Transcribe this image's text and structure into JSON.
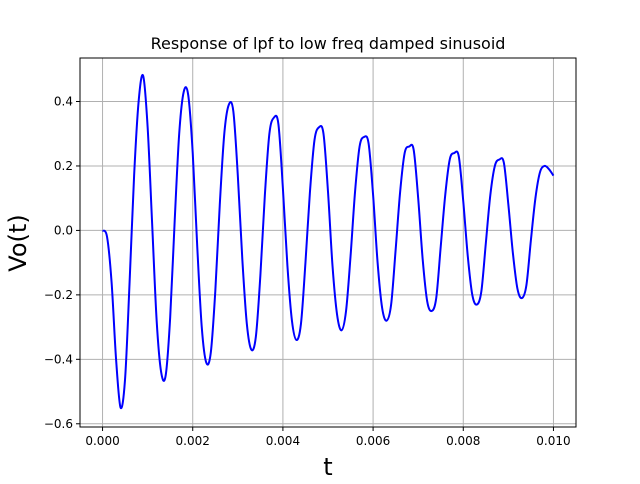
{
  "chart_data": {
    "type": "line",
    "title": "Response of lpf to low freq damped sinusoid",
    "xlabel": "t",
    "ylabel": "Vo(t)",
    "xlim": [
      -0.0005,
      0.0105
    ],
    "ylim": [
      -0.61,
      0.535
    ],
    "xticks": [
      0.0,
      0.002,
      0.004,
      0.006,
      0.008,
      0.01
    ],
    "xtick_labels": [
      "0.000",
      "0.002",
      "0.004",
      "0.006",
      "0.008",
      "0.010"
    ],
    "yticks": [
      -0.6,
      -0.4,
      -0.2,
      0.0,
      0.2,
      0.4
    ],
    "ytick_labels": [
      "−0.6",
      "−0.4",
      "−0.2",
      "0.0",
      "0.2",
      "0.4"
    ],
    "grid": true,
    "line_color": "#0000ff",
    "grid_color": "#b0b0b0",
    "series": [
      {
        "x": [
          0.0,
          0.0001,
          0.0002,
          0.0003,
          0.0004,
          0.0005,
          0.0006,
          0.0007,
          0.0008,
          0.0009,
          0.001,
          0.0011,
          0.0012,
          0.0013,
          0.0014,
          0.0015,
          0.0016,
          0.0017,
          0.0018,
          0.0019,
          0.002,
          0.0021,
          0.0022,
          0.0023,
          0.0024,
          0.0025,
          0.0026,
          0.0027,
          0.0028,
          0.0029,
          0.003,
          0.0031,
          0.0032,
          0.0033,
          0.0034,
          0.0035,
          0.0036,
          0.0037,
          0.0038,
          0.0039,
          0.004,
          0.0041,
          0.0042,
          0.0043,
          0.0044,
          0.0045,
          0.0046,
          0.0047,
          0.0048,
          0.0049,
          0.005,
          0.0051,
          0.0052,
          0.0053,
          0.0054,
          0.0055,
          0.0056,
          0.0057,
          0.0058,
          0.0059,
          0.006,
          0.0061,
          0.0062,
          0.0063,
          0.0064,
          0.0065,
          0.0066,
          0.0067,
          0.0068,
          0.0069,
          0.007,
          0.0071,
          0.0072,
          0.0073,
          0.0074,
          0.0075,
          0.0076,
          0.0077,
          0.0078,
          0.0079,
          0.008,
          0.0081,
          0.0082,
          0.0083,
          0.0084,
          0.0085,
          0.0086,
          0.0087,
          0.0088,
          0.0089,
          0.009,
          0.0091,
          0.0092,
          0.0093,
          0.0094,
          0.0095,
          0.0096,
          0.0097,
          0.0098,
          0.0099,
          0.01
        ],
        "y": [
          0.0,
          -0.02,
          -0.16,
          -0.4,
          -0.55,
          -0.46,
          -0.16,
          0.17,
          0.4,
          0.48,
          0.32,
          0.02,
          -0.28,
          -0.44,
          -0.45,
          -0.27,
          0.03,
          0.3,
          0.43,
          0.42,
          0.24,
          -0.05,
          -0.3,
          -0.41,
          -0.38,
          -0.19,
          0.08,
          0.3,
          0.39,
          0.37,
          0.17,
          -0.09,
          -0.29,
          -0.37,
          -0.33,
          -0.14,
          0.11,
          0.3,
          0.35,
          0.33,
          0.13,
          -0.11,
          -0.28,
          -0.34,
          -0.29,
          -0.1,
          0.12,
          0.28,
          0.32,
          0.3,
          0.12,
          -0.11,
          -0.26,
          -0.31,
          -0.25,
          -0.08,
          0.12,
          0.26,
          0.29,
          0.27,
          0.11,
          -0.1,
          -0.24,
          -0.28,
          -0.23,
          -0.06,
          0.12,
          0.24,
          0.26,
          0.25,
          0.1,
          -0.09,
          -0.22,
          -0.25,
          -0.21,
          -0.05,
          0.11,
          0.22,
          0.24,
          0.23,
          0.09,
          -0.08,
          -0.2,
          -0.23,
          -0.19,
          -0.04,
          0.11,
          0.2,
          0.22,
          0.21,
          0.08,
          -0.07,
          -0.18,
          -0.21,
          -0.17,
          -0.03,
          0.1,
          0.18,
          0.2,
          0.19,
          0.17
        ]
      }
    ]
  }
}
